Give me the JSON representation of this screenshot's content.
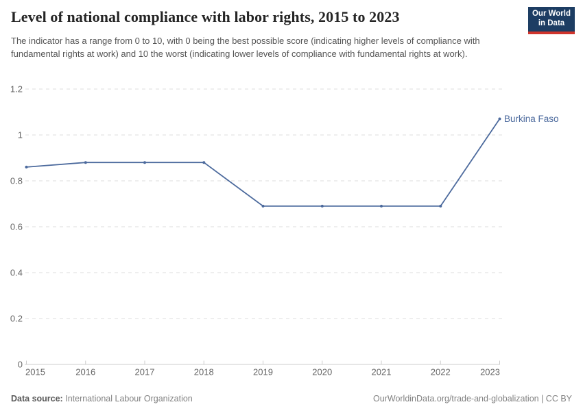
{
  "header": {
    "title": "Level of national compliance with labor rights, 2015 to 2023",
    "subtitle": "The indicator has a range from 0 to 10, with 0 being the best possible score (indicating higher levels of compliance with fundamental rights at work) and 10 the worst (indicating lower levels of compliance with fundamental rights at work)."
  },
  "logo": {
    "line1": "Our World",
    "line2": "in Data",
    "background_color": "#1d3d63",
    "stripe_color": "#d0342c"
  },
  "chart_data": {
    "type": "line",
    "title": "Level of national compliance with labor rights, 2015 to 2023",
    "x": [
      2015,
      2016,
      2017,
      2018,
      2019,
      2020,
      2021,
      2022,
      2023
    ],
    "x_tick_labels": [
      "2015",
      "2016",
      "2017",
      "2018",
      "2019",
      "2020",
      "2021",
      "2022",
      "2023"
    ],
    "series": [
      {
        "name": "Burkina Faso",
        "values": [
          0.86,
          0.88,
          0.88,
          0.88,
          0.69,
          0.69,
          0.69,
          0.69,
          1.07
        ],
        "color": "#4C6A9D"
      }
    ],
    "xlabel": "",
    "ylabel": "",
    "ylim": [
      0,
      1.2
    ],
    "yticks": [
      {
        "value": 0,
        "label": "0"
      },
      {
        "value": 0.2,
        "label": "0.2"
      },
      {
        "value": 0.4,
        "label": "0.4"
      },
      {
        "value": 0.6,
        "label": "0.6"
      },
      {
        "value": 0.8,
        "label": "0.8"
      },
      {
        "value": 1,
        "label": "1"
      },
      {
        "value": 1.2,
        "label": "1.2"
      }
    ],
    "grid": true,
    "gridline_color": "#dddddd",
    "axis_color": "#cccccc",
    "tick_label_color": "#666666",
    "legend_position": "end-of-line-label"
  },
  "footer": {
    "source_label": "Data source:",
    "source_value": "International Labour Organization",
    "credit": "OurWorldinData.org/trade-and-globalization | CC BY"
  }
}
